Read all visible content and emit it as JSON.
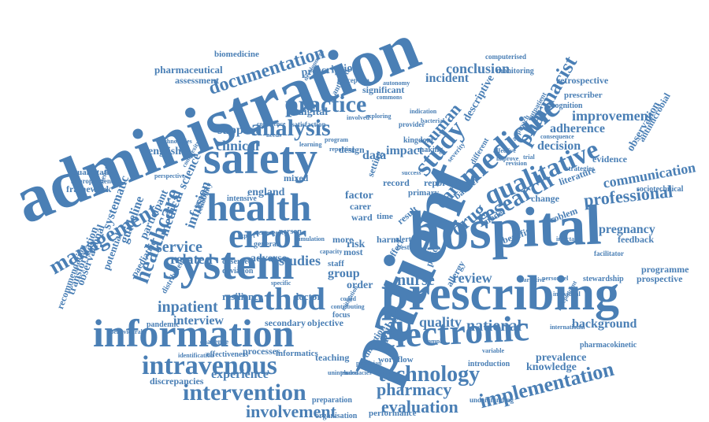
{
  "color": "#4a7fb5",
  "words": [
    {
      "text": "administration"
    },
    {
      "text": "patient"
    },
    {
      "text": "hospital"
    },
    {
      "text": "prescribing"
    },
    {
      "text": "safety"
    },
    {
      "text": "system"
    },
    {
      "text": "information"
    },
    {
      "text": "electronic"
    },
    {
      "text": "health"
    },
    {
      "text": "error"
    },
    {
      "text": "method"
    },
    {
      "text": "medicine"
    },
    {
      "text": "intravenous"
    },
    {
      "text": "intervention"
    },
    {
      "text": "qualitative"
    },
    {
      "text": "research"
    },
    {
      "text": "study"
    },
    {
      "text": "analysis"
    },
    {
      "text": "practice"
    },
    {
      "text": "healthcare"
    },
    {
      "text": "management"
    },
    {
      "text": "technology"
    },
    {
      "text": "implementation"
    },
    {
      "text": "professional"
    },
    {
      "text": "pharmacist"
    },
    {
      "text": "drug"
    },
    {
      "text": "care"
    },
    {
      "text": "human"
    },
    {
      "text": "involvement"
    },
    {
      "text": "evaluation"
    },
    {
      "text": "pharmacy"
    },
    {
      "text": "documentation"
    },
    {
      "text": "inpatient"
    },
    {
      "text": "interview"
    },
    {
      "text": "national"
    },
    {
      "text": "background"
    },
    {
      "text": "nurse"
    },
    {
      "text": "review"
    },
    {
      "text": "quality"
    },
    {
      "text": "service"
    },
    {
      "text": "related"
    },
    {
      "text": "studies"
    },
    {
      "text": "adverse"
    },
    {
      "text": "communication"
    },
    {
      "text": "improvement"
    },
    {
      "text": "adherence"
    },
    {
      "text": "decision"
    },
    {
      "text": "pregnancy"
    },
    {
      "text": "conclusion"
    },
    {
      "text": "incident"
    },
    {
      "text": "clinical"
    },
    {
      "text": "support"
    },
    {
      "text": "infusion"
    },
    {
      "text": "science"
    },
    {
      "text": "medical"
    },
    {
      "text": "systematic"
    },
    {
      "text": "guideline"
    },
    {
      "text": "observational"
    },
    {
      "text": "transformation"
    },
    {
      "text": "recommendation"
    },
    {
      "text": "participant"
    },
    {
      "text": "paediatric"
    },
    {
      "text": "potential"
    },
    {
      "text": "experience"
    },
    {
      "text": "knowledge"
    },
    {
      "text": "prevalence"
    },
    {
      "text": "public"
    },
    {
      "text": "group"
    },
    {
      "text": "order"
    },
    {
      "text": "prescription"
    },
    {
      "text": "pharmaceutical"
    },
    {
      "text": "biomedicine"
    },
    {
      "text": "assessment"
    },
    {
      "text": "digital"
    },
    {
      "text": "significant"
    },
    {
      "text": "england"
    },
    {
      "text": "english"
    },
    {
      "text": "quantitative"
    },
    {
      "text": "framework"
    },
    {
      "text": "factor"
    },
    {
      "text": "secondary"
    },
    {
      "text": "objective"
    },
    {
      "text": "resilience"
    },
    {
      "text": "doctor"
    },
    {
      "text": "workflow"
    },
    {
      "text": "teaching"
    },
    {
      "text": "processes"
    },
    {
      "text": "informatics"
    },
    {
      "text": "discrepancies"
    },
    {
      "text": "effectiveness"
    },
    {
      "text": "pandemic"
    },
    {
      "text": "distributed"
    },
    {
      "text": "challenge"
    },
    {
      "text": "preparation"
    },
    {
      "text": "organisation"
    },
    {
      "text": "performance"
    },
    {
      "text": "understanding"
    },
    {
      "text": "programme"
    },
    {
      "text": "prospective"
    },
    {
      "text": "feedback"
    },
    {
      "text": "observation"
    },
    {
      "text": "antimicrobial"
    },
    {
      "text": "evidence"
    },
    {
      "text": "sociotechnical"
    },
    {
      "text": "retrospective"
    },
    {
      "text": "prescriber"
    },
    {
      "text": "cognition"
    },
    {
      "text": "monitoring"
    },
    {
      "text": "computerised"
    },
    {
      "text": "descriptive"
    },
    {
      "text": "impact"
    },
    {
      "text": "data"
    },
    {
      "text": "setting"
    },
    {
      "text": "change"
    },
    {
      "text": "literature"
    },
    {
      "text": "problem"
    },
    {
      "text": "benefit"
    },
    {
      "text": "stewardship"
    },
    {
      "text": "pharmacokinetic"
    },
    {
      "text": "introduction"
    },
    {
      "text": "focus"
    },
    {
      "text": "direction"
    },
    {
      "text": "harm"
    },
    {
      "text": "risk"
    },
    {
      "text": "ward"
    },
    {
      "text": "carer"
    },
    {
      "text": "mixed"
    },
    {
      "text": "design"
    },
    {
      "text": "record"
    },
    {
      "text": "report"
    },
    {
      "text": "primary"
    },
    {
      "text": "time"
    },
    {
      "text": "result"
    },
    {
      "text": "policy"
    },
    {
      "text": "allergy"
    },
    {
      "text": "barrier"
    },
    {
      "text": "model"
    },
    {
      "text": "staff"
    },
    {
      "text": "most"
    },
    {
      "text": "more"
    },
    {
      "text": "alert"
    },
    {
      "text": "best"
    },
    {
      "text": "effect"
    },
    {
      "text": "intensive"
    },
    {
      "text": "reliability"
    },
    {
      "text": "observed"
    },
    {
      "text": "deviation"
    },
    {
      "text": "general"
    },
    {
      "text": "person"
    },
    {
      "text": "kingdom"
    },
    {
      "text": "making"
    },
    {
      "text": "antibiotic"
    },
    {
      "text": "perception"
    },
    {
      "text": "satisfaction"
    },
    {
      "text": "autonomy"
    },
    {
      "text": "commons"
    },
    {
      "text": "technologies"
    },
    {
      "text": "antenatal"
    },
    {
      "text": "appropriateness"
    },
    {
      "text": "perspective"
    },
    {
      "text": "complexity"
    },
    {
      "text": "consequence"
    },
    {
      "text": "strategies"
    },
    {
      "text": "facilitator"
    },
    {
      "text": "injectable"
    },
    {
      "text": "personnel"
    },
    {
      "text": "individual"
    },
    {
      "text": "narrative"
    },
    {
      "text": "independent"
    },
    {
      "text": "international"
    },
    {
      "text": "identification"
    },
    {
      "text": "behavioural"
    },
    {
      "text": "accuracy"
    },
    {
      "text": "sample"
    },
    {
      "text": "variable"
    },
    {
      "text": "involved"
    },
    {
      "text": "development"
    },
    {
      "text": "provider"
    },
    {
      "text": "indication"
    },
    {
      "text": "bacterial"
    },
    {
      "text": "different"
    },
    {
      "text": "severity"
    },
    {
      "text": "affective"
    },
    {
      "text": "improve"
    },
    {
      "text": "approach"
    },
    {
      "text": "outpatient"
    },
    {
      "text": "revision"
    },
    {
      "text": "trial"
    },
    {
      "text": "program"
    },
    {
      "text": "reporting"
    },
    {
      "text": "exploring"
    },
    {
      "text": "learning"
    },
    {
      "text": "confidence"
    },
    {
      "text": "needs"
    },
    {
      "text": "success"
    },
    {
      "text": "contributing"
    },
    {
      "text": "unintended"
    },
    {
      "text": "physician"
    },
    {
      "text": "pharmacies"
    },
    {
      "text": "coded"
    },
    {
      "text": "mitigation"
    },
    {
      "text": "capacity"
    },
    {
      "text": "simulation"
    },
    {
      "text": "emergency"
    },
    {
      "text": "expert"
    },
    {
      "text": "specific"
    }
  ]
}
